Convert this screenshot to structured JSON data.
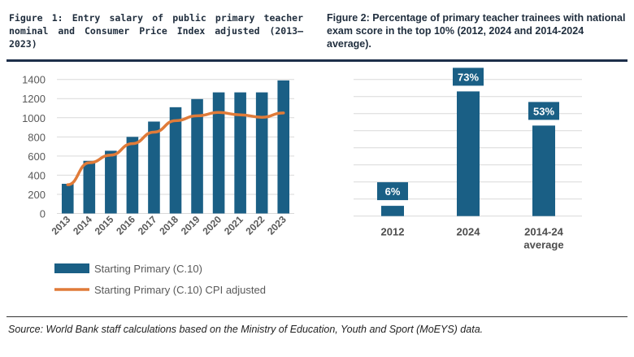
{
  "figure1_title": "Figure 1: Entry salary of public primary teacher nominal and Consumer Price Index adjusted (2013–2023)",
  "figure2_title": "Figure 2: Percentage of primary teacher trainees with national exam score in the top 10% (2012, 2024 and 2014-2024 average).",
  "source": "Source: World Bank staff calculations based on the Ministry of Education, Youth and Sport (MoEYS) data.",
  "chart_data": [
    {
      "type": "bar",
      "categories": [
        "2013",
        "2014",
        "2015",
        "2016",
        "2017",
        "2018",
        "2019",
        "2020",
        "2021",
        "2022",
        "2023"
      ],
      "series": [
        {
          "name": "Starting Primary (C.10)",
          "type": "bar",
          "color": "#1a5f85",
          "values": [
            310,
            550,
            655,
            800,
            960,
            1110,
            1195,
            1265,
            1265,
            1265,
            1390
          ]
        },
        {
          "name": "Starting Primary (C.10) CPI adjusted",
          "type": "line",
          "color": "#e07b39",
          "values": [
            300,
            530,
            610,
            730,
            850,
            970,
            1020,
            1055,
            1030,
            1005,
            1050
          ]
        }
      ],
      "yticks": [
        "0",
        "200",
        "400",
        "600",
        "800",
        "1000",
        "1200",
        "1400"
      ],
      "ylim": [
        0,
        1400
      ],
      "grid": true,
      "legend": "bottom"
    },
    {
      "type": "bar",
      "categories": [
        "2012",
        "2024",
        "2014-24 average"
      ],
      "category_lines": [
        [
          "2012"
        ],
        [
          "2024"
        ],
        [
          "2014-24",
          "average"
        ]
      ],
      "values": [
        6,
        73,
        53
      ],
      "data_labels": [
        "6%",
        "73%",
        "53%"
      ],
      "color": "#1a5f85",
      "ylim": [
        0,
        80
      ],
      "grid": true
    }
  ]
}
